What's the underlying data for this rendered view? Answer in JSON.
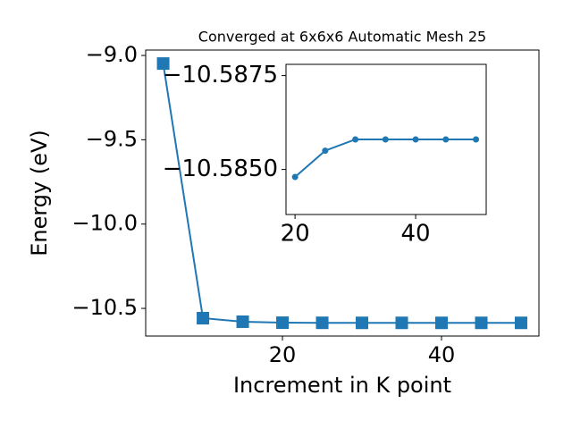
{
  "chart_data": [
    {
      "type": "line",
      "title": "Converged at 6x6x6 Automatic Mesh 25",
      "x_label": "Increment in K point",
      "y_label": "Energy (eV)",
      "x": [
        5,
        10,
        15,
        20,
        25,
        30,
        35,
        40,
        45,
        50
      ],
      "values": [
        -9.048,
        -10.558,
        -10.579,
        -10.5848,
        -10.5855,
        -10.5858,
        -10.5858,
        -10.5858,
        -10.5858,
        -10.5858
      ],
      "color": "#1f77b4",
      "marker": "square",
      "xlim": [
        2.8,
        52.25
      ],
      "ylim": [
        -10.664,
        -8.968
      ],
      "xticks": [
        20,
        40
      ],
      "yticks": [
        {
          "value": -9.0,
          "label": "−9.0"
        },
        {
          "value": -9.5,
          "label": "−9.5"
        },
        {
          "value": -10.0,
          "label": "−10.0"
        },
        {
          "value": -10.5,
          "label": "−10.5"
        }
      ]
    },
    {
      "type": "line",
      "x": [
        20,
        25,
        30,
        35,
        40,
        45,
        50
      ],
      "values": [
        -10.5848,
        -10.5855,
        -10.5858,
        -10.5858,
        -10.5858,
        -10.5858,
        -10.5858
      ],
      "color": "#1f77b4",
      "marker": "circle",
      "xlim": [
        18.5,
        51.7
      ],
      "ylim": [
        -10.5838,
        -10.5878
      ],
      "xticks": [
        20,
        40
      ],
      "yticks": [
        {
          "value": -10.5875,
          "label": "−10.5875"
        },
        {
          "value": -10.585,
          "label": "−10.5850"
        }
      ]
    }
  ]
}
